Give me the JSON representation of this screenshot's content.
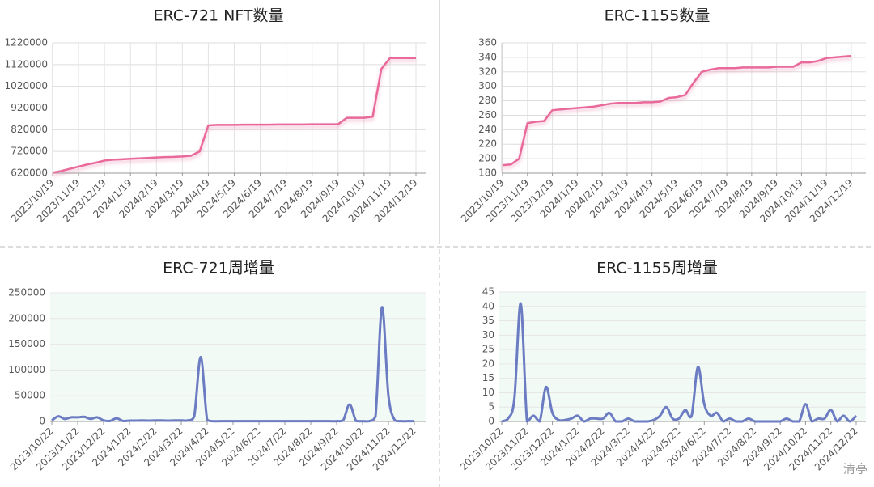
{
  "chart_data": [
    {
      "type": "line",
      "title": "ERC-721 NFT数量",
      "color": "#e8699a",
      "grid": true,
      "smooth": false,
      "background": "#ffffff",
      "categories": [
        "2023/10/19",
        null,
        null,
        "2023/11/19",
        null,
        null,
        "2023/12/19",
        null,
        null,
        "2024/1/19",
        null,
        null,
        "2024/2/19",
        null,
        null,
        "2024/3/19",
        null,
        null,
        "2024/4/19",
        null,
        null,
        "2024/5/19",
        null,
        null,
        "2024/6/19",
        null,
        null,
        "2024/7/19",
        null,
        null,
        "2024/8/19",
        null,
        null,
        "2024/9/19",
        null,
        null,
        "2024/10/19",
        null,
        null,
        "2024/11/19",
        null,
        null,
        "2024/12/19"
      ],
      "values": [
        622000,
        630000,
        640000,
        650000,
        660000,
        668000,
        678000,
        682000,
        684000,
        686000,
        688000,
        690000,
        692000,
        694000,
        695000,
        697000,
        700000,
        720000,
        840000,
        842000,
        842000,
        842000,
        843000,
        843000,
        843000,
        843000,
        844000,
        844000,
        844000,
        844000,
        845000,
        845000,
        845000,
        845000,
        875000,
        875000,
        875000,
        880000,
        1100000,
        1150000,
        1150000,
        1150000,
        1150000
      ],
      "ylim": [
        620000,
        1220000
      ],
      "yticks": [
        620000,
        720000,
        820000,
        920000,
        1020000,
        1120000,
        1220000
      ]
    },
    {
      "type": "line",
      "title": "ERC-1155数量",
      "color": "#e8699a",
      "grid": true,
      "smooth": false,
      "background": "#ffffff",
      "categories": [
        "2023/10/19",
        null,
        null,
        "2023/11/19",
        null,
        null,
        "2023/12/19",
        null,
        null,
        "2024/1/19",
        null,
        null,
        "2024/2/19",
        null,
        null,
        "2024/3/19",
        null,
        null,
        "2024/4/19",
        null,
        null,
        "2024/5/19",
        null,
        null,
        "2024/6/19",
        null,
        null,
        "2024/7/19",
        null,
        null,
        "2024/8/19",
        null,
        null,
        "2024/9/19",
        null,
        null,
        "2024/10/19",
        null,
        null,
        "2024/11/19",
        null,
        null,
        "2024/12/19"
      ],
      "values": [
        191,
        192,
        200,
        249,
        251,
        252,
        267,
        268,
        269,
        270,
        271,
        272,
        274,
        276,
        277,
        277,
        277,
        278,
        278,
        279,
        284,
        285,
        288,
        305,
        320,
        323,
        325,
        325,
        325,
        326,
        326,
        326,
        326,
        327,
        327,
        327,
        333,
        333,
        335,
        339,
        340,
        341,
        342
      ],
      "ylim": [
        180,
        360
      ],
      "yticks": [
        180,
        200,
        220,
        240,
        260,
        280,
        300,
        320,
        340,
        360
      ]
    },
    {
      "type": "line",
      "title": "ERC-721周增量",
      "color": "#6b7cc2",
      "grid": false,
      "smooth": true,
      "background": "#f2faf6",
      "categories": [
        "2023/10/22",
        null,
        null,
        null,
        "2023/11/22",
        null,
        null,
        null,
        "2023/12/22",
        null,
        null,
        null,
        "2024/1/22",
        null,
        null,
        null,
        "2024/2/22",
        null,
        null,
        null,
        "2024/3/22",
        null,
        null,
        null,
        "2024/4/22",
        null,
        null,
        null,
        "2024/5/22",
        null,
        null,
        null,
        "2024/6/22",
        null,
        null,
        null,
        "2024/7/22",
        null,
        null,
        null,
        "2024/8/22",
        null,
        null,
        null,
        "2024/9/22",
        null,
        null,
        null,
        "2024/10/22",
        null,
        null,
        null,
        "2024/11/22",
        null,
        null,
        null,
        "2024/12/22"
      ],
      "values": [
        2000,
        10000,
        5000,
        8000,
        8000,
        9000,
        5000,
        8000,
        2000,
        1000,
        6000,
        1000,
        1500,
        1500,
        2000,
        1500,
        2000,
        2000,
        1500,
        2000,
        2000,
        2000,
        10000,
        125000,
        3000,
        500,
        500,
        500,
        500,
        500,
        500,
        500,
        500,
        500,
        500,
        500,
        500,
        500,
        500,
        500,
        500,
        500,
        500,
        500,
        500,
        2000,
        33000,
        1000,
        500,
        500,
        10000,
        222000,
        50000,
        2000,
        500,
        500,
        500
      ],
      "ylim": [
        0,
        250000
      ],
      "yticks": [
        0,
        50000,
        100000,
        150000,
        200000,
        250000
      ]
    },
    {
      "type": "line",
      "title": "ERC-1155周增量",
      "color": "#6b7cc2",
      "grid": false,
      "smooth": true,
      "background": "#f2faf6",
      "categories": [
        "2023/10/22",
        null,
        null,
        null,
        "2023/11/22",
        null,
        null,
        null,
        "2023/12/22",
        null,
        null,
        null,
        "2024/1/22",
        null,
        null,
        null,
        "2024/2/22",
        null,
        null,
        null,
        "2024/3/22",
        null,
        null,
        null,
        "2024/4/22",
        null,
        null,
        null,
        "2024/5/22",
        null,
        null,
        null,
        "2024/6/22",
        null,
        null,
        null,
        "2024/7/22",
        null,
        null,
        null,
        "2024/8/22",
        null,
        null,
        null,
        "2024/9/22",
        null,
        null,
        null,
        "2024/10/22",
        null,
        null,
        null,
        "2024/11/22",
        null,
        null,
        null,
        "2024/12/22"
      ],
      "values": [
        0,
        1,
        8,
        41,
        0,
        2,
        0,
        12,
        3,
        0.5,
        0.5,
        1,
        2,
        0,
        1,
        1,
        1,
        3,
        0,
        0,
        1,
        0,
        0,
        0,
        0.5,
        2,
        5,
        1,
        1,
        4,
        2,
        19,
        6,
        2,
        3,
        0,
        1,
        0,
        0,
        1,
        0,
        0,
        0,
        0,
        0,
        1,
        0,
        0,
        6,
        0,
        1,
        1,
        4,
        0,
        2,
        0,
        2
      ],
      "ylim": [
        0,
        45
      ],
      "yticks": [
        0,
        5,
        10,
        15,
        20,
        25,
        30,
        35,
        40,
        45
      ]
    }
  ],
  "watermark": "清亭"
}
